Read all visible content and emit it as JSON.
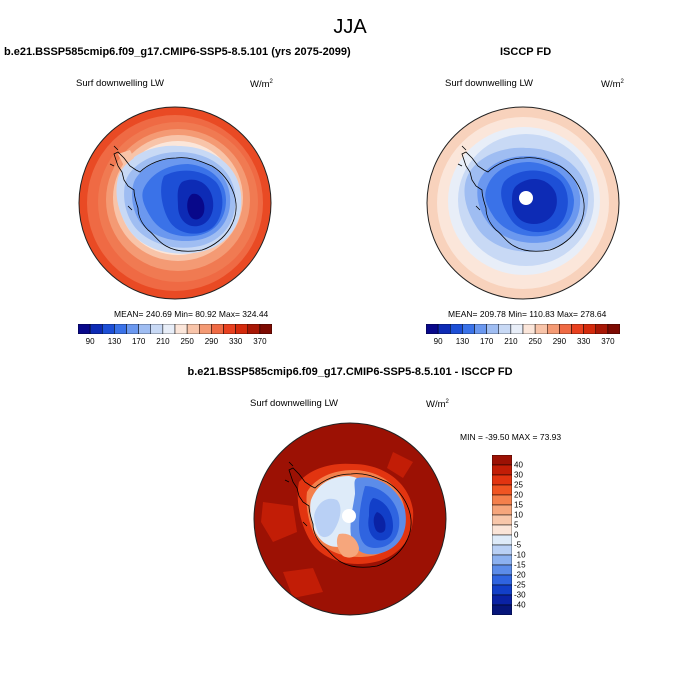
{
  "season": "JJA",
  "panel_left": {
    "title": "b.e21.BSSP585cmip6.f09_g17.CMIP6-SSP5-8.5.101 (yrs 2075-2099)",
    "variable": "Surf downwelling LW",
    "units": "W/m",
    "units_sup": "2",
    "stats": "MEAN= 240.69   Min=  80.92   Max= 324.44"
  },
  "panel_right": {
    "title": "ISCCP FD",
    "variable": "Surf downwelling LW",
    "units": "W/m",
    "units_sup": "2",
    "stats": "MEAN= 209.78   Min= 110.83   Max= 278.64"
  },
  "panel_diff": {
    "title": "b.e21.BSSP585cmip6.f09_g17.CMIP6-SSP5-8.5.101 - ISCCP FD",
    "variable": "Surf downwelling LW",
    "units": "W/m",
    "units_sup": "2",
    "stats": "MIN = -39.50  MAX =  73.93"
  },
  "colorbar_abs": {
    "labels": [
      "90",
      "130",
      "170",
      "210",
      "250",
      "290",
      "330",
      "370"
    ],
    "colors": [
      "#08088a",
      "#0d2bb5",
      "#1d4fd6",
      "#3a72e8",
      "#6b98ef",
      "#9fbdf2",
      "#c8d9f5",
      "#e8eef8",
      "#fbe6da",
      "#f8c4a9",
      "#f49a74",
      "#ef6a44",
      "#e8401f",
      "#d42a0c",
      "#a81705",
      "#7d0a02"
    ]
  },
  "colorbar_diff": {
    "labels": [
      "40",
      "30",
      "25",
      "20",
      "15",
      "10",
      "5",
      "0",
      "-5",
      "-10",
      "-15",
      "-20",
      "-25",
      "-30",
      "-40"
    ],
    "colors": [
      "#9c1104",
      "#c21d06",
      "#e23410",
      "#f05522",
      "#f4804c",
      "#f6a67c",
      "#f8c7aa",
      "#fbe5d8",
      "#deebf9",
      "#b9d0f5",
      "#8cb1f0",
      "#5c8ce9",
      "#2f64e0",
      "#123fc8",
      "#0a22a4",
      "#06157a"
    ]
  },
  "map_colors": {
    "coastline": "#000000",
    "rim": "#222222"
  }
}
